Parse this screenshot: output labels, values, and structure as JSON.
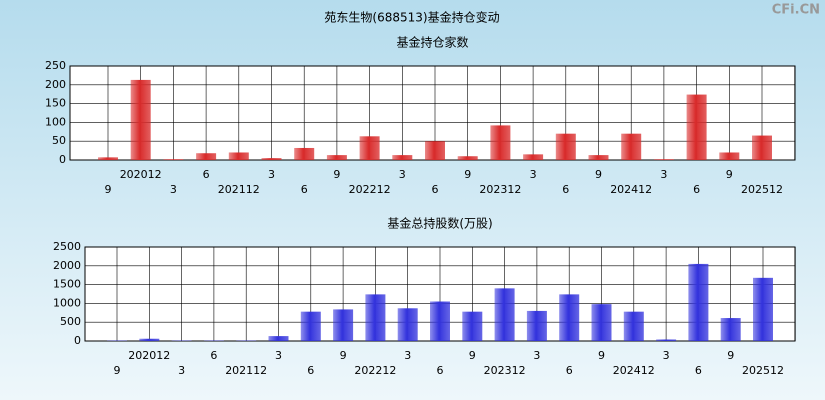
{
  "title": "苑东生物(688513)基金持仓变动",
  "watermark": "CFi.CN",
  "chart_data": [
    {
      "type": "bar",
      "title": "基金持仓家数",
      "color": "#d92b2b",
      "categories": [
        "9",
        "202012",
        "3",
        "6",
        "202112",
        "3",
        "6",
        "9",
        "202212",
        "3",
        "6",
        "9",
        "202312",
        "3",
        "6",
        "9",
        "202412",
        "3",
        "6",
        "9",
        "202512"
      ],
      "values": [
        7,
        213,
        2,
        18,
        20,
        5,
        32,
        13,
        63,
        13,
        50,
        10,
        92,
        15,
        70,
        13,
        70,
        2,
        174,
        20,
        65
      ],
      "ylim": [
        0,
        250
      ],
      "yticks": [
        0,
        50,
        100,
        150,
        200,
        250
      ],
      "grid": true
    },
    {
      "type": "bar",
      "title": "基金总持股数(万股)",
      "color": "#3333dd",
      "categories": [
        "9",
        "202012",
        "3",
        "6",
        "202112",
        "3",
        "6",
        "9",
        "202212",
        "3",
        "6",
        "9",
        "202312",
        "3",
        "6",
        "9",
        "202412",
        "3",
        "6",
        "9",
        "202512"
      ],
      "values": [
        10,
        60,
        10,
        10,
        10,
        130,
        780,
        840,
        1240,
        870,
        1050,
        780,
        1400,
        800,
        1240,
        980,
        780,
        40,
        2050,
        610,
        1680
      ],
      "ylim": [
        0,
        2500
      ],
      "yticks": [
        0,
        500,
        1000,
        1500,
        2000,
        2500
      ],
      "grid": true
    }
  ]
}
